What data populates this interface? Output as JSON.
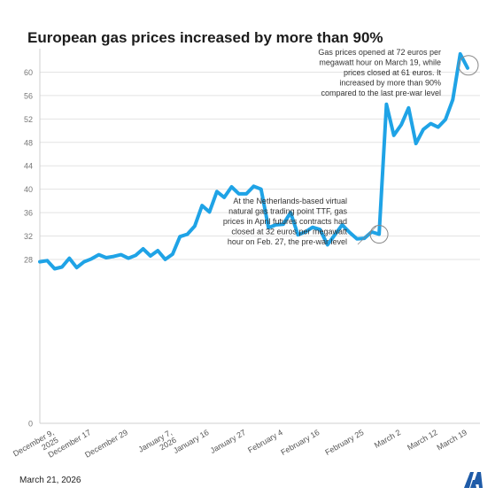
{
  "chart_data": {
    "type": "line",
    "title": "European gas prices increased by more than 90%",
    "xlabel": "",
    "ylabel": "",
    "ylim": [
      0,
      64
    ],
    "yticks": [
      0,
      28,
      32,
      36,
      40,
      44,
      48,
      52,
      56,
      60
    ],
    "grid": true,
    "x_tick_labels": [
      "December 9, 2025",
      "December 17",
      "December 29",
      "January 7, 2026",
      "January 16",
      "January 27",
      "February 4",
      "February 16",
      "February 25",
      "March 2",
      "March 12",
      "March 19"
    ],
    "series": [
      {
        "color": "#1fa3e6",
        "values": [
          27.6,
          27.8,
          26.4,
          26.7,
          28.2,
          26.6,
          27.6,
          28.1,
          28.8,
          28.3,
          28.5,
          28.8,
          28.2,
          28.7,
          29.8,
          28.6,
          29.5,
          28.0,
          28.9,
          31.9,
          32.3,
          33.7,
          37.2,
          36.1,
          39.6,
          38.6,
          40.4,
          39.2,
          39.2,
          40.5,
          40.0,
          33.4,
          33.9,
          34.0,
          36.0,
          32.2,
          32.7,
          33.5,
          33.1,
          30.5,
          32.2,
          33.9,
          32.6,
          31.5,
          31.6,
          32.7,
          32.3,
          54.5,
          49.2,
          51.0,
          53.9,
          47.8,
          50.2,
          51.2,
          50.6,
          51.9,
          55.3,
          63.1,
          60.7
        ]
      }
    ],
    "annotations": [
      {
        "text": "At the Netherlands-based virtual natural gas trading point TTF, gas prices in April futures contracts had closed at 32 euros per megawatt hour on Feb. 27, the pre-war level",
        "lines": [
          "At the Netherlands-based virtual",
          "natural gas trading point TTF, gas",
          "prices in April futures contracts had",
          "closed at 32 euros per megawatt",
          "hour on Feb. 27, the pre-war level"
        ],
        "point_index": 46
      },
      {
        "text": "Gas prices opened at 72 euros per megawatt hour on March 19, while prices closed at 61 euros. It increased by more than 90% compared to the last pre-war level",
        "lines": [
          "Gas prices opened at 72 euros per",
          "megawatt hour on March 19, while",
          "prices closed at 61 euros. It",
          "increased by more than 90%",
          "compared to the last pre-war level"
        ],
        "point_index": 58
      }
    ]
  },
  "footer": {
    "date": "March 21, 2026"
  },
  "logo": {
    "name": "aa-logo-icon",
    "color": "#1f5ba8"
  }
}
